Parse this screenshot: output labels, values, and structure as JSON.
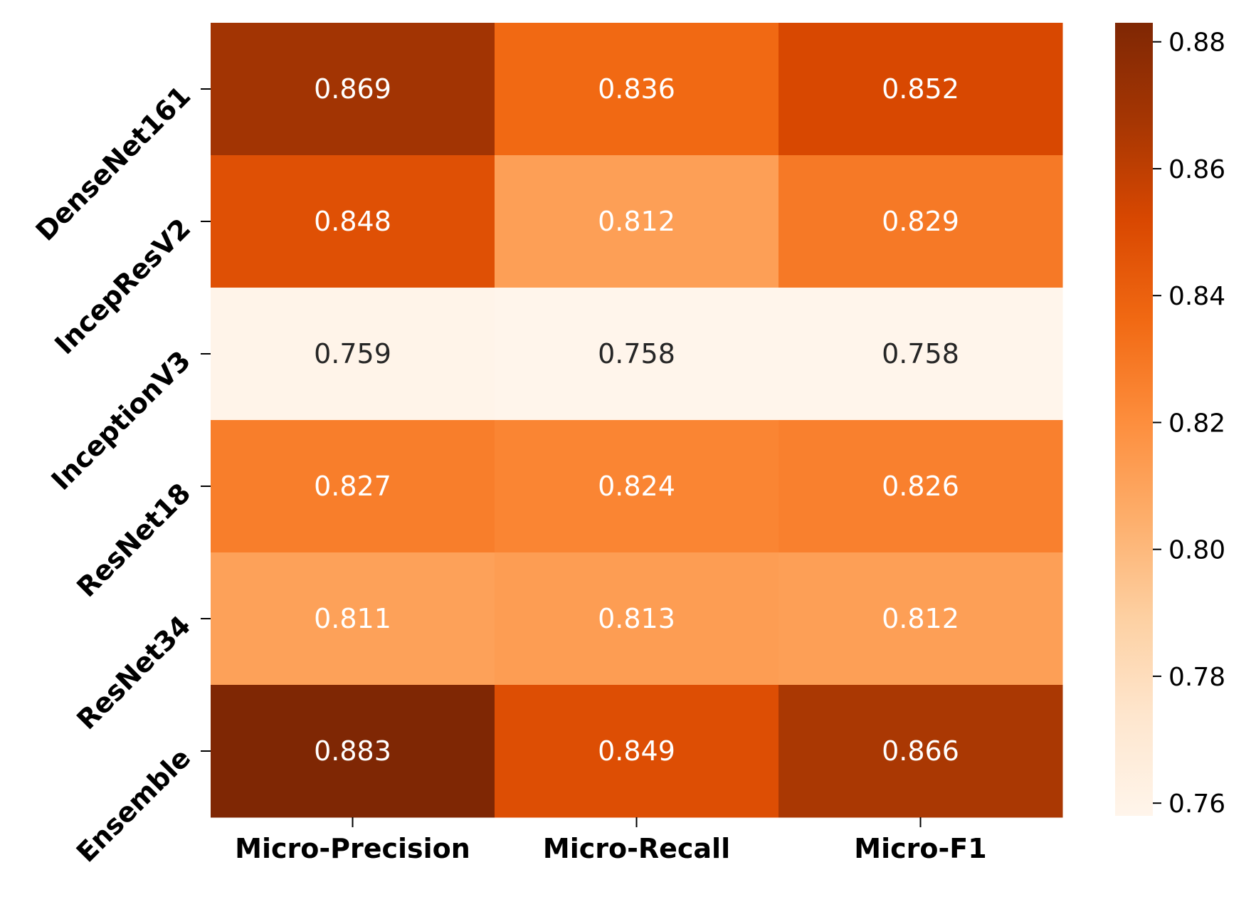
{
  "chart_data": {
    "type": "heatmap",
    "title": "",
    "xlabel": "",
    "ylabel": "",
    "rows": [
      "DenseNet161",
      "IncepResV2",
      "InceptionV3",
      "ResNet18",
      "ResNet34",
      "Ensemble"
    ],
    "columns": [
      "Micro-Precision",
      "Micro-Recall",
      "Micro-F1"
    ],
    "values": [
      [
        0.869,
        0.836,
        0.852
      ],
      [
        0.848,
        0.812,
        0.829
      ],
      [
        0.759,
        0.758,
        0.758
      ],
      [
        0.827,
        0.824,
        0.826
      ],
      [
        0.811,
        0.813,
        0.812
      ],
      [
        0.883,
        0.849,
        0.866
      ]
    ],
    "colormap": "Oranges",
    "colorbar": {
      "min": 0.758,
      "max": 0.883,
      "ticks": [
        "0.76",
        "0.78",
        "0.80",
        "0.82",
        "0.84",
        "0.86",
        "0.88"
      ]
    },
    "annot_colors": {
      "light": "#ffffff",
      "dark": "#262626"
    }
  }
}
